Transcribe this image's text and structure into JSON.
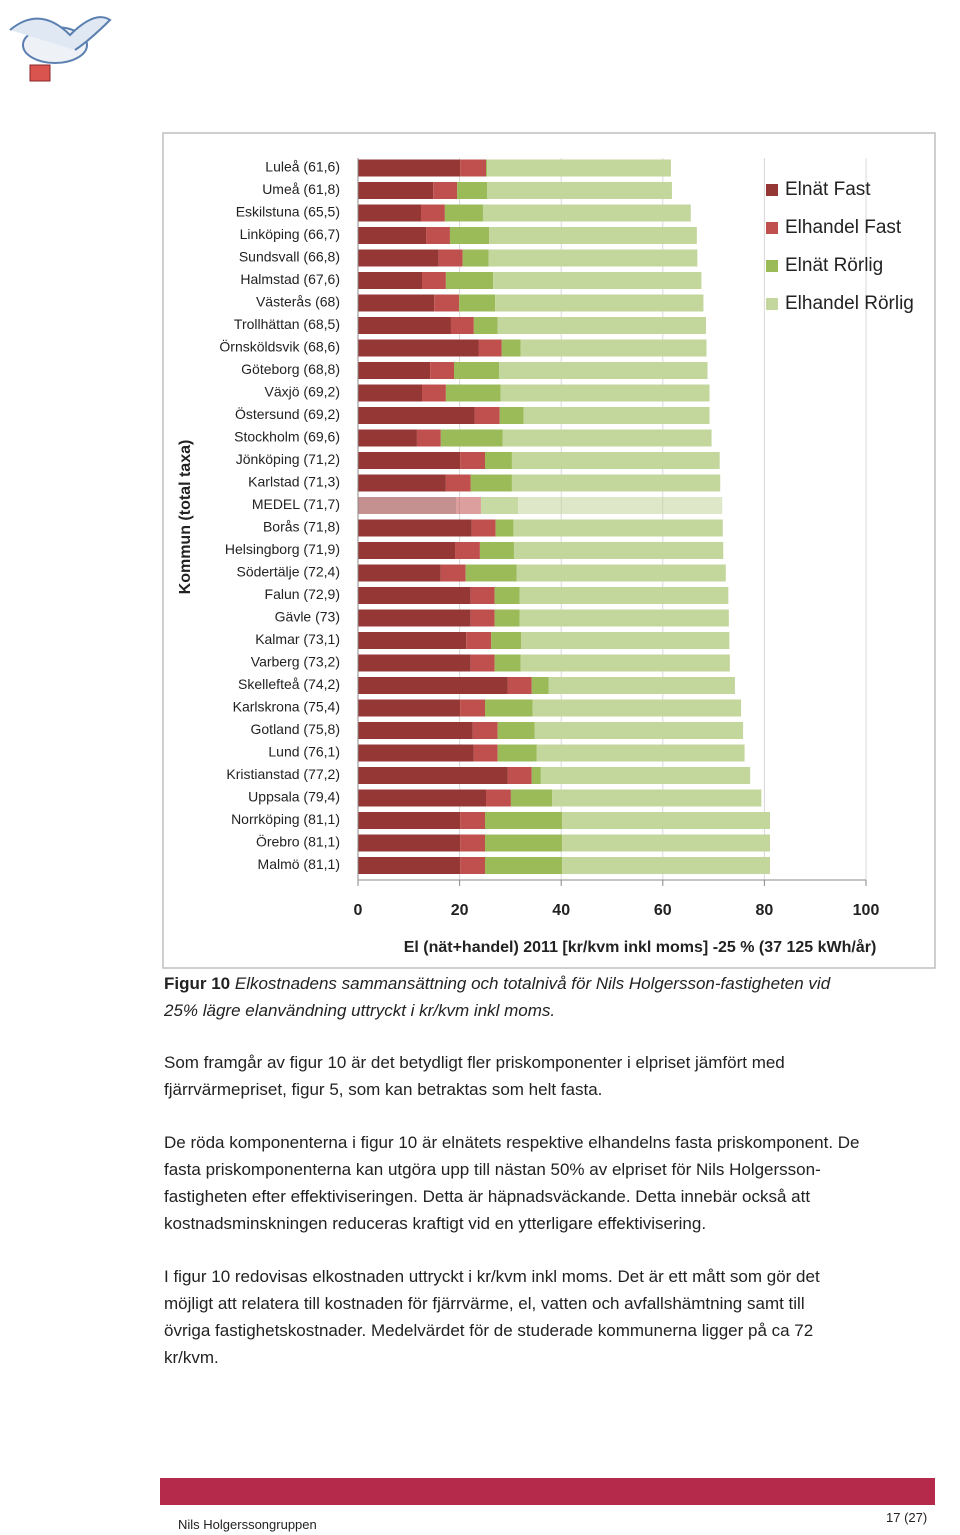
{
  "chart_data": {
    "type": "stacked-barh",
    "xlabel": "El (nät+handel) 2011 [kr/kvm inkl moms] -25 % (37 125 kWh/år)",
    "ylabel": "Kommun (total taxa)",
    "categories": [
      "Luleå (61,6)",
      "Umeå (61,8)",
      "Eskilstuna (65,5)",
      "Linköping (66,7)",
      "Sundsvall (66,8)",
      "Halmstad (67,6)",
      "Västerås (68)",
      "Trollhättan (68,5)",
      "Örnsköldsvik (68,6)",
      "Göteborg (68,8)",
      "Växjö (69,2)",
      "Östersund (69,2)",
      "Stockholm (69,6)",
      "Jönköping (71,2)",
      "Karlstad (71,3)",
      "MEDEL (71,7)",
      "Borås (71,8)",
      "Helsingborg (71,9)",
      "Södertälje (72,4)",
      "Falun (72,9)",
      "Gävle (73)",
      "Kalmar (73,1)",
      "Varberg (73,2)",
      "Skellefteå (74,2)",
      "Karlskrona (75,4)",
      "Gotland (75,8)",
      "Lund (76,1)",
      "Kristianstad (77,2)",
      "Uppsala (79,4)",
      "Norrköping (81,1)",
      "Örebro (81,1)",
      "Malmö (81,1)"
    ],
    "series": [
      {
        "name": "Elnät Fast",
        "color": "#953735",
        "values": [
          20.1,
          14.8,
          12.4,
          13.4,
          15.9,
          12.6,
          15.0,
          18.3,
          23.8,
          14.2,
          12.6,
          23.0,
          11.6,
          20.1,
          17.3,
          19.3,
          22.4,
          19.1,
          16.3,
          22.2,
          22.2,
          21.3,
          22.2,
          29.5,
          20.1,
          22.6,
          22.8,
          29.5,
          25.2,
          20.1,
          20.1,
          20.1
        ]
      },
      {
        "name": "Elhandel Fast",
        "color": "#c0504d",
        "values": [
          5.1,
          4.7,
          4.7,
          4.7,
          4.7,
          4.7,
          4.9,
          4.5,
          4.5,
          4.7,
          4.7,
          4.9,
          4.7,
          4.9,
          4.9,
          4.9,
          4.7,
          4.9,
          4.9,
          4.7,
          4.7,
          4.9,
          4.7,
          4.7,
          4.9,
          4.9,
          4.7,
          4.7,
          4.9,
          4.9,
          4.9,
          4.9
        ]
      },
      {
        "name": "Elnät Rörlig",
        "color": "#9bbb59",
        "values": [
          0.2,
          5.9,
          7.5,
          7.7,
          5.1,
          9.3,
          7.1,
          4.7,
          3.7,
          8.9,
          10.8,
          4.7,
          12.2,
          5.3,
          8.1,
          7.3,
          3.5,
          6.7,
          10.0,
          4.9,
          4.9,
          5.9,
          5.1,
          3.3,
          9.4,
          7.3,
          7.7,
          1.8,
          8.1,
          15.2,
          15.2,
          15.2
        ]
      },
      {
        "name": "Elhandel Rörlig",
        "color": "#c3d69b",
        "values": [
          36.2,
          36.4,
          40.9,
          40.9,
          41.1,
          41.0,
          41.0,
          41.0,
          36.6,
          41.0,
          41.1,
          36.6,
          41.1,
          40.9,
          41.0,
          40.2,
          41.2,
          41.2,
          41.2,
          41.1,
          41.2,
          41.0,
          41.2,
          36.7,
          41.0,
          41.0,
          40.9,
          41.2,
          41.2,
          40.9,
          40.9,
          40.9
        ]
      }
    ],
    "highlight": 15,
    "xlim": [
      0,
      100
    ],
    "xticks": [
      0,
      20,
      40,
      60,
      80,
      100
    ],
    "grid": true,
    "legend": "top-right"
  },
  "caption": {
    "label": "Figur 10",
    "lines": [
      "Elkostnadens sammansättning och totalnivå för Nils Holgersson-fastigheten vid",
      "25% lägre elanvändning uttryckt i kr/kvm inkl moms."
    ]
  },
  "paragraphs": [
    [
      "Som framgår av figur 10 är det betydligt fler priskomponenter i elpriset jämfört med",
      "fjärrvärmepriset, figur 5, som kan betraktas som helt fasta."
    ],
    [
      "De röda komponenterna i figur 10 är elnätets respektive elhandelns fasta priskomponent. De",
      "fasta priskomponenterna kan utgöra upp till nästan 50% av elpriset för Nils Holgersson-",
      "fastigheten efter effektiviseringen. Detta är häpnadsväckande. Detta innebär också att",
      "kostnadsminskningen reduceras kraftigt vid en ytterligare effektivisering."
    ],
    [
      "I figur 10 redovisas elkostnaden uttryckt i kr/kvm inkl moms. Det är ett mått som gör det",
      "möjligt att relatera till kostnaden för fjärrvärme, el, vatten och avfallshämtning samt till",
      "övriga fastighetskostnader. Medelvärdet för de studerade kommunerna ligger på ca 72",
      "kr/kvm."
    ]
  ],
  "footer": {
    "org": "Nils Holgerssongruppen",
    "page": "17 (27)"
  }
}
